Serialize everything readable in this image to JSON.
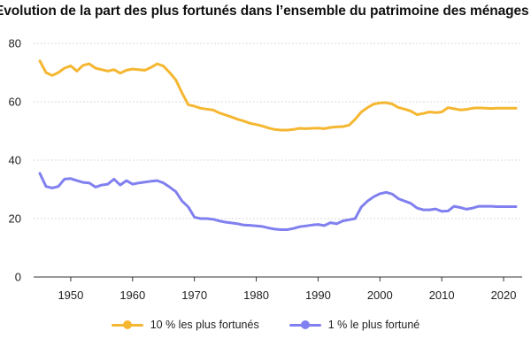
{
  "chart_data": {
    "type": "line",
    "title": "Evolution de la part des plus fortunés dans l’ensemble du patrimoine des ménages",
    "xlim": [
      1944,
      2023
    ],
    "ylim": [
      0,
      80
    ],
    "x_ticks": [
      1950,
      1960,
      1970,
      1980,
      1990,
      2000,
      2010,
      2020
    ],
    "y_ticks": [
      0,
      20,
      40,
      60,
      80
    ],
    "grid": "horizontal",
    "legend_position": "bottom-center",
    "series": [
      {
        "name": "10 % les plus fortunés",
        "color": "#F5B731",
        "x": [
          1945,
          1946,
          1947,
          1948,
          1949,
          1950,
          1951,
          1952,
          1953,
          1954,
          1955,
          1956,
          1957,
          1958,
          1959,
          1960,
          1961,
          1962,
          1963,
          1964,
          1965,
          1966,
          1967,
          1968,
          1969,
          1970,
          1971,
          1972,
          1973,
          1974,
          1975,
          1976,
          1977,
          1978,
          1979,
          1980,
          1981,
          1982,
          1983,
          1984,
          1985,
          1986,
          1987,
          1988,
          1989,
          1990,
          1991,
          1992,
          1993,
          1994,
          1995,
          1996,
          1997,
          1998,
          1999,
          2000,
          2001,
          2002,
          2003,
          2004,
          2005,
          2006,
          2007,
          2008,
          2009,
          2010,
          2011,
          2012,
          2013,
          2014,
          2015,
          2016,
          2017,
          2018,
          2019,
          2020,
          2021,
          2022
        ],
        "values": [
          74,
          70,
          69,
          70,
          71.5,
          72.3,
          70.5,
          72.5,
          73,
          71.5,
          71,
          70.5,
          71,
          69.8,
          70.8,
          71.2,
          71,
          70.8,
          71.8,
          73,
          72.2,
          70,
          67.5,
          63,
          59,
          58.5,
          57.8,
          57.5,
          57.2,
          56.2,
          55.5,
          54.8,
          54,
          53.4,
          52.6,
          52.2,
          51.7,
          51,
          50.5,
          50.3,
          50.3,
          50.5,
          50.9,
          50.8,
          50.9,
          51,
          50.8,
          51.2,
          51.4,
          51.5,
          52,
          54,
          56.5,
          58,
          59.2,
          59.6,
          59.7,
          59.2,
          58,
          57.5,
          56.8,
          55.6,
          56,
          56.5,
          56.3,
          56.5,
          58,
          57.6,
          57.2,
          57.4,
          57.8,
          57.9,
          57.8,
          57.7,
          57.8,
          57.8,
          57.8,
          57.8
        ]
      },
      {
        "name": "1 % le plus fortuné",
        "color": "#8080F0",
        "x": [
          1945,
          1946,
          1947,
          1948,
          1949,
          1950,
          1951,
          1952,
          1953,
          1954,
          1955,
          1956,
          1957,
          1958,
          1959,
          1960,
          1961,
          1962,
          1963,
          1964,
          1965,
          1966,
          1967,
          1968,
          1969,
          1970,
          1971,
          1972,
          1973,
          1974,
          1975,
          1976,
          1977,
          1978,
          1979,
          1980,
          1981,
          1982,
          1983,
          1984,
          1985,
          1986,
          1987,
          1988,
          1989,
          1990,
          1991,
          1992,
          1993,
          1994,
          1995,
          1996,
          1997,
          1998,
          1999,
          2000,
          2001,
          2002,
          2003,
          2004,
          2005,
          2006,
          2007,
          2008,
          2009,
          2010,
          2011,
          2012,
          2013,
          2014,
          2015,
          2016,
          2017,
          2018,
          2019,
          2020,
          2021,
          2022
        ],
        "values": [
          35.5,
          31,
          30.5,
          31,
          33.5,
          33.7,
          33,
          32.4,
          32.2,
          30.8,
          31.5,
          31.8,
          33.5,
          31.5,
          33,
          31.8,
          32.2,
          32.5,
          32.8,
          33,
          32.2,
          30.8,
          29.2,
          26,
          24,
          20.5,
          20,
          20,
          19.8,
          19.2,
          18.8,
          18.5,
          18.2,
          17.8,
          17.7,
          17.5,
          17.3,
          16.8,
          16.4,
          16.2,
          16.2,
          16.6,
          17.2,
          17.5,
          17.8,
          18,
          17.6,
          18.6,
          18.2,
          19.2,
          19.6,
          20,
          24,
          26,
          27.5,
          28.5,
          29,
          28.4,
          26.8,
          26,
          25.2,
          23.6,
          23,
          23,
          23.3,
          22.5,
          22.6,
          24.2,
          23.8,
          23.2,
          23.6,
          24.2,
          24.2,
          24.2,
          24.1,
          24.1,
          24.1,
          24.1
        ]
      }
    ]
  }
}
